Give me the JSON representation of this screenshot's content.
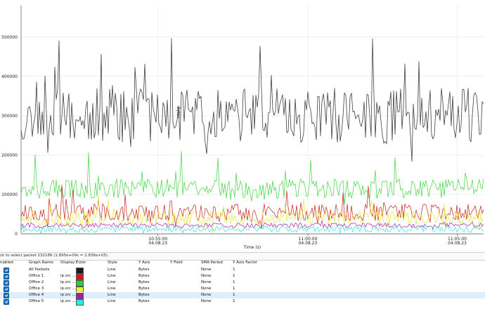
{
  "chart_data": {
    "type": "line",
    "xlabel": "Time (s)",
    "ylabel": "Bytes",
    "ylim": [
      0,
      580000
    ],
    "yticks": [
      0,
      100000,
      200000,
      300000,
      400000,
      500000
    ],
    "ytick_labels": [
      "0",
      "100000",
      "200000",
      "300000",
      "400000",
      "500000"
    ],
    "xticks": [
      {
        "time": "10:55:00",
        "date": "04.08.23",
        "frac": 0.296
      },
      {
        "time": "11:00:00",
        "date": "04.08.23",
        "frac": 0.62
      },
      {
        "time": "11:05:00",
        "date": "04.08.23",
        "frac": 0.943
      }
    ],
    "grid": true,
    "series": [
      {
        "name": "All Packets",
        "color": "#404040",
        "base": 300000,
        "amp": 70000,
        "spike": 220000,
        "seed": 11
      },
      {
        "name": "Office 1",
        "color": "#c81e1e",
        "base": 55000,
        "amp": 22000,
        "spike": 55000,
        "seed": 23
      },
      {
        "name": "Office 2",
        "color": "#3fd43f",
        "base": 115000,
        "amp": 25000,
        "spike": 90000,
        "seed": 37
      },
      {
        "name": "Office 3",
        "color": "#e8e83a",
        "base": 40000,
        "amp": 20000,
        "spike": 45000,
        "seed": 51
      },
      {
        "name": "Office 4",
        "color": "#b01eb0",
        "base": 22000,
        "amp": 6000,
        "spike": 10000,
        "seed": 67
      },
      {
        "name": "Office 5",
        "color": "#35e0e0",
        "base": 12000,
        "amp": 8000,
        "spike": 10000,
        "seed": 79
      }
    ]
  },
  "status_text": "ck to select packet 232186 (1.895e+09s = 2.836e+05).",
  "table": {
    "headers": {
      "enabled": "nabled",
      "graph_name": "Graph Name",
      "display_filter": "Display F",
      "color": "Color",
      "style": "Style",
      "y_axis": "Y Axis",
      "y_field": "Y Field",
      "sma_period": "SMA Period",
      "y_axis_factor": "Y Axis Factor"
    },
    "rows": [
      {
        "name": "All Packets",
        "filter": "",
        "color": "#1a1a1a",
        "style": "Line",
        "y_axis": "Bytes",
        "y_field": "",
        "sma": "None",
        "factor": "1"
      },
      {
        "name": "Office 1",
        "filter": "ip.src ...",
        "color": "#d11a1a",
        "style": "Line",
        "y_axis": "Bytes",
        "y_field": "",
        "sma": "None",
        "factor": "1"
      },
      {
        "name": "Office 2",
        "filter": "ip.src ...",
        "color": "#2ad42a",
        "style": "Line",
        "y_axis": "Bytes",
        "y_field": "",
        "sma": "None",
        "factor": "1"
      },
      {
        "name": "Office 3",
        "filter": "ip.src ...",
        "color": "#f0f03a",
        "style": "Line",
        "y_axis": "Bytes",
        "y_field": "",
        "sma": "None",
        "factor": "1"
      },
      {
        "name": "Office 4",
        "filter": "ip.src ...",
        "color": "#a81aa8",
        "style": "Line",
        "y_axis": "Bytes",
        "y_field": "",
        "sma": "None",
        "factor": "1"
      },
      {
        "name": "Office 5",
        "filter": "ip.src ...",
        "color": "#2ee8e8",
        "style": "Line",
        "y_axis": "Bytes",
        "y_field": "",
        "sma": "None",
        "factor": "1"
      }
    ]
  }
}
